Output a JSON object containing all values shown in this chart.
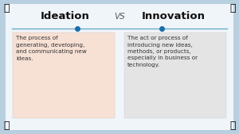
{
  "title_left": "Ideation",
  "title_vs": "VS",
  "title_right": "Innovation",
  "left_text": "The process of\ngenerating, developing,\nand communicating new\nideas.",
  "right_text": "The act or process of\nintroducing new ideas,\nmethods, or products,\nespecially in business or\ntechnology.",
  "bg_color": "#b8cfe0",
  "panel_bg": "#f0f5fa",
  "left_box_color": "#f7e0d4",
  "right_box_color": "#e4e4e4",
  "title_color": "#111111",
  "vs_color": "#555555",
  "text_color": "#333333",
  "line_color": "#6aabcc",
  "dot_color": "#1a6eaa",
  "title_fontsize": 9.5,
  "vs_fontsize": 7.5,
  "text_fontsize": 5.2,
  "figwidth": 3.0,
  "figheight": 1.69,
  "dpi": 100
}
